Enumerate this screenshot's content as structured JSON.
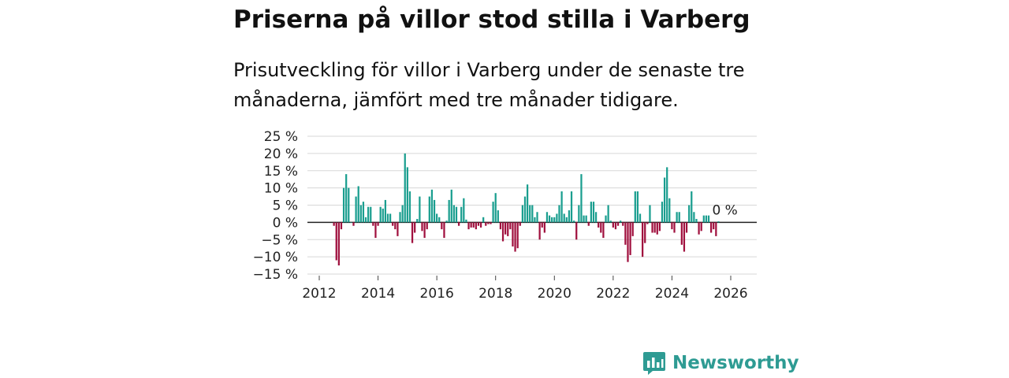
{
  "title": "Priserna på villor stod stilla i Varberg",
  "subtitle": "Prisutveckling för villor i Varberg under de senaste tre månaderna, jämfört med tre månader tidigare.",
  "brand": {
    "name": "Newsworthy",
    "color": "#2e9b93"
  },
  "colors": {
    "positive": "#1a9e8f",
    "negative": "#a0103e",
    "grid": "#d7d7d7",
    "zero": "#222222"
  },
  "chart_data": {
    "type": "bar",
    "ylabel": "",
    "xlabel": "",
    "ylim": [
      -15,
      25
    ],
    "xlim": [
      2011.5,
      2027
    ],
    "y_ticks": [
      {
        "v": 25,
        "label": "25 %"
      },
      {
        "v": 20,
        "label": "20 %"
      },
      {
        "v": 15,
        "label": "15 %"
      },
      {
        "v": 10,
        "label": "10 %"
      },
      {
        "v": 5,
        "label": "5 %"
      },
      {
        "v": 0,
        "label": "0 %"
      },
      {
        "v": -5,
        "label": "−5 %"
      },
      {
        "v": -10,
        "label": "−10 %"
      },
      {
        "v": -15,
        "label": "−15 %"
      }
    ],
    "x_ticks": [
      {
        "v": 2012,
        "label": "2012"
      },
      {
        "v": 2014,
        "label": "2014"
      },
      {
        "v": 2016,
        "label": "2016"
      },
      {
        "v": 2018,
        "label": "2018"
      },
      {
        "v": 2020,
        "label": "2020"
      },
      {
        "v": 2022,
        "label": "2022"
      },
      {
        "v": 2024,
        "label": "2024"
      },
      {
        "v": 2026,
        "label": "2026"
      }
    ],
    "start": 2012.5,
    "step": 0.08333,
    "values": [
      -1,
      -11,
      -12.5,
      -2,
      10,
      14,
      10,
      0,
      -1,
      7.5,
      10.5,
      5,
      6,
      1.5,
      4.5,
      4.5,
      -1,
      -4.5,
      -1,
      4.5,
      4,
      6.5,
      2.5,
      2.5,
      -1,
      -2,
      -4,
      3,
      5,
      20,
      16,
      9,
      -6,
      -3,
      1,
      7.5,
      -2.5,
      -4.5,
      -2,
      7.5,
      9.5,
      6.5,
      2.5,
      1.5,
      -2,
      -4.5,
      0.5,
      6.5,
      9.5,
      5,
      4.5,
      -1,
      4.5,
      7,
      0.8,
      -2,
      -1.5,
      -1.5,
      -2,
      -1,
      -1.5,
      1.5,
      -1,
      -0.5,
      -0.5,
      6,
      8.5,
      3.5,
      -2,
      -5.5,
      -3.5,
      -4,
      -2,
      -7,
      -8.5,
      -7.5,
      -1,
      5,
      7.5,
      11,
      5,
      5,
      1.5,
      3,
      -5,
      -1.5,
      -3,
      3,
      2,
      1.5,
      1.5,
      2.5,
      5,
      9,
      2.5,
      1.5,
      3.5,
      9,
      0.5,
      -5,
      5,
      14,
      2,
      2,
      -1,
      6,
      6,
      3,
      -1.5,
      -3,
      -4.5,
      2,
      5,
      0.5,
      -1.5,
      -2,
      -1,
      0.5,
      -1,
      -6.5,
      -11.5,
      -9.5,
      -4,
      9,
      9,
      2.5,
      -10,
      -6,
      -0.5,
      5,
      -3,
      -3,
      -3.5,
      -2.5,
      6,
      13,
      16,
      7,
      -2,
      -3,
      3,
      3,
      -6.5,
      -8.5,
      -3,
      5,
      9,
      3,
      1,
      -3.5,
      -2.5,
      2,
      2,
      2,
      -3,
      -2,
      -4,
      0.3
    ],
    "annotation": {
      "label": "0 %"
    }
  }
}
